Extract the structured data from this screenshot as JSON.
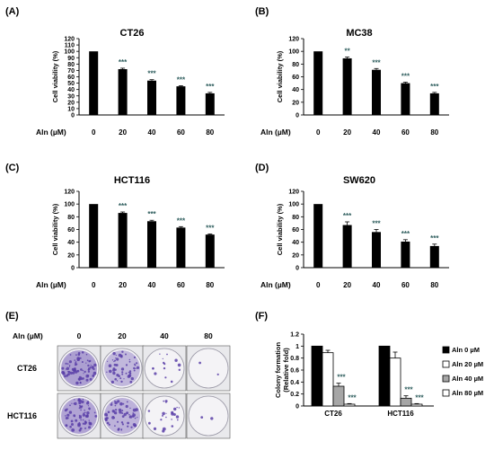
{
  "chart_data": [
    {
      "panel": "(A)",
      "type": "bar",
      "title": "CT26",
      "ylabel": "Cell viability (%)",
      "xlabel": "Aln (µM)",
      "categories": [
        "0",
        "20",
        "40",
        "60",
        "80"
      ],
      "values": [
        100,
        72,
        54,
        45,
        34
      ],
      "errors": [
        0,
        1.5,
        1.5,
        1,
        1.5
      ],
      "significance": [
        "",
        "***",
        "***",
        "***",
        "***"
      ],
      "ylim": [
        0,
        120
      ],
      "yticks": [
        0,
        10,
        20,
        30,
        40,
        50,
        60,
        70,
        80,
        90,
        100,
        110,
        120
      ]
    },
    {
      "panel": "(B)",
      "type": "bar",
      "title": "MC38",
      "ylabel": "Cell viability (%)",
      "xlabel": "Aln (µM)",
      "categories": [
        "0",
        "20",
        "40",
        "60",
        "80"
      ],
      "values": [
        100,
        89,
        71,
        50,
        34
      ],
      "errors": [
        0,
        2,
        2,
        1.5,
        1.5
      ],
      "significance": [
        "",
        "**",
        "***",
        "***",
        "***"
      ],
      "ylim": [
        0,
        120
      ],
      "yticks": [
        0,
        20,
        40,
        60,
        80,
        100,
        120
      ]
    },
    {
      "panel": "(C)",
      "type": "bar",
      "title": "HCT116",
      "ylabel": "Cell viability (%)",
      "xlabel": "Aln (µM)",
      "categories": [
        "0",
        "20",
        "40",
        "60",
        "80"
      ],
      "values": [
        100,
        86,
        73,
        63,
        52
      ],
      "errors": [
        0,
        1.5,
        1.5,
        1.5,
        1
      ],
      "significance": [
        "",
        "***",
        "***",
        "***",
        "***"
      ],
      "ylim": [
        0,
        120
      ],
      "yticks": [
        0,
        20,
        40,
        60,
        80,
        100,
        120
      ]
    },
    {
      "panel": "(D)",
      "type": "bar",
      "title": "SW620",
      "ylabel": "Cell viability (%)",
      "xlabel": "Aln (µM)",
      "categories": [
        "0",
        "20",
        "40",
        "60",
        "80"
      ],
      "values": [
        100,
        67,
        56,
        41,
        34
      ],
      "errors": [
        0,
        5,
        4,
        3,
        3
      ],
      "significance": [
        "",
        "***",
        "***",
        "***",
        "***"
      ],
      "ylim": [
        0,
        120
      ],
      "yticks": [
        0,
        20,
        40,
        60,
        80,
        100,
        120
      ]
    },
    {
      "panel": "(F)",
      "type": "bar",
      "ylabel": "Colony formation (Relative fold)",
      "categories": [
        "CT26",
        "HCT116"
      ],
      "series": [
        {
          "name": "Aln 0 µM",
          "values": [
            1.0,
            1.0
          ],
          "errors": [
            0,
            0
          ],
          "color": "#000000"
        },
        {
          "name": "Aln 20 µM",
          "values": [
            0.89,
            0.8
          ],
          "errors": [
            0.04,
            0.1
          ],
          "color": "#ffffff"
        },
        {
          "name": "Aln 40 µM",
          "values": [
            0.33,
            0.13
          ],
          "errors": [
            0.05,
            0.04
          ],
          "color": "#a6a6a6"
        },
        {
          "name": "Aln 80 µM",
          "values": [
            0.03,
            0.03
          ],
          "errors": [
            0.01,
            0.01
          ],
          "color": "#ffffff"
        }
      ],
      "significance": [
        [
          "",
          "",
          "***",
          "***"
        ],
        [
          "",
          "",
          "***",
          "***"
        ]
      ],
      "ylim": [
        0,
        1.2
      ],
      "yticks": [
        "0",
        "0.2",
        "0.4",
        "0.6",
        "0.8",
        "1",
        "1.2"
      ],
      "legend": "right"
    }
  ],
  "panel_e": {
    "label": "(E)",
    "aln_label": "Aln (µM)",
    "concentrations": [
      "0",
      "20",
      "40",
      "80"
    ],
    "rows": [
      {
        "name": "CT26",
        "stain_density": [
          0.85,
          0.6,
          0.15,
          0.02
        ]
      },
      {
        "name": "HCT116",
        "stain_density": [
          0.8,
          0.65,
          0.25,
          0.02
        ]
      }
    ],
    "stain_color": "#5b3fa8"
  }
}
